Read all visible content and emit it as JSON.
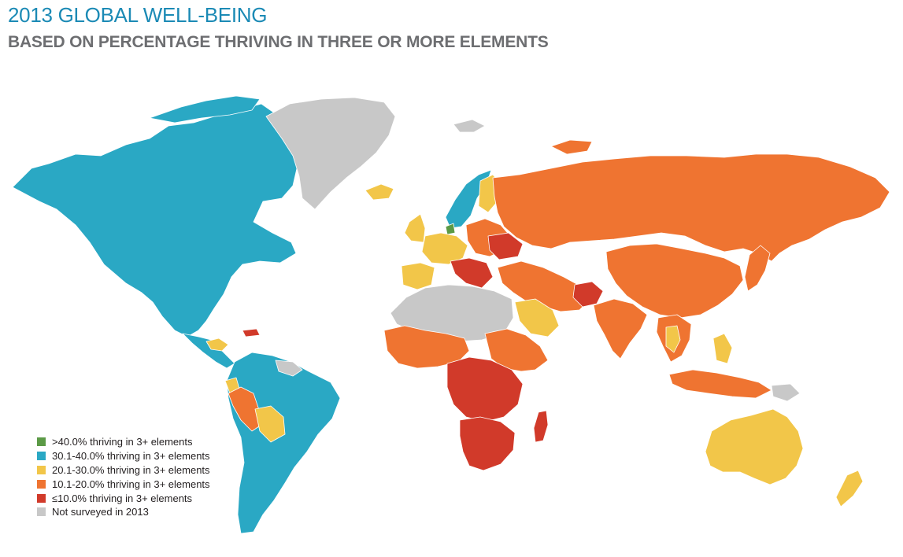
{
  "title": "2013 GLOBAL WELL-BEING",
  "subtitle": "BASED ON PERCENTAGE THRIVING IN THREE OR MORE ELEMENTS",
  "colors": {
    "green": "#5b9a46",
    "blue": "#2aa8c4",
    "yellow": "#f2c649",
    "orange": "#ef7431",
    "red": "#d13a2a",
    "gray": "#c8c8c8",
    "ocean": "#ffffff"
  },
  "legend": [
    {
      "label": ">40.0% thriving in 3+ elements",
      "color": "green"
    },
    {
      "label": "30.1-40.0% thriving in 3+ elements",
      "color": "blue"
    },
    {
      "label": "20.1-30.0% thriving in 3+ elements",
      "color": "yellow"
    },
    {
      "label": "10.1-20.0% thriving in 3+ elements",
      "color": "orange"
    },
    {
      "label": "≤10.0% thriving in 3+ elements",
      "color": "red"
    },
    {
      "label": "Not surveyed in 2013",
      "color": "gray"
    }
  ],
  "regions": [
    {
      "name": "north-america",
      "color": "blue"
    },
    {
      "name": "greenland",
      "color": "gray"
    },
    {
      "name": "iceland",
      "color": "yellow"
    },
    {
      "name": "central-america",
      "color": "blue"
    },
    {
      "name": "south-america",
      "color": "blue"
    },
    {
      "name": "peru",
      "color": "orange"
    },
    {
      "name": "bolivia",
      "color": "yellow"
    },
    {
      "name": "ecuador",
      "color": "yellow"
    },
    {
      "name": "guianas",
      "color": "gray"
    },
    {
      "name": "scandinavia",
      "color": "blue"
    },
    {
      "name": "finland",
      "color": "yellow"
    },
    {
      "name": "denmark",
      "color": "green"
    },
    {
      "name": "western-europe",
      "color": "yellow"
    },
    {
      "name": "uk",
      "color": "yellow"
    },
    {
      "name": "iberia",
      "color": "yellow"
    },
    {
      "name": "eastern-europe",
      "color": "orange"
    },
    {
      "name": "balkans",
      "color": "red"
    },
    {
      "name": "ukraine",
      "color": "red"
    },
    {
      "name": "russia",
      "color": "orange"
    },
    {
      "name": "north-africa-desert",
      "color": "gray"
    },
    {
      "name": "west-africa",
      "color": "orange"
    },
    {
      "name": "central-africa",
      "color": "red"
    },
    {
      "name": "east-africa",
      "color": "orange"
    },
    {
      "name": "southern-africa",
      "color": "red"
    },
    {
      "name": "madagascar",
      "color": "red"
    },
    {
      "name": "middle-east",
      "color": "orange"
    },
    {
      "name": "saudi-arabia",
      "color": "yellow"
    },
    {
      "name": "afghanistan",
      "color": "red"
    },
    {
      "name": "south-asia",
      "color": "orange"
    },
    {
      "name": "china",
      "color": "orange"
    },
    {
      "name": "japan",
      "color": "orange"
    },
    {
      "name": "southeast-asia",
      "color": "orange"
    },
    {
      "name": "thailand",
      "color": "yellow"
    },
    {
      "name": "philippines",
      "color": "yellow"
    },
    {
      "name": "indonesia",
      "color": "orange"
    },
    {
      "name": "papua",
      "color": "gray"
    },
    {
      "name": "australia",
      "color": "yellow"
    },
    {
      "name": "new-zealand",
      "color": "yellow"
    },
    {
      "name": "svalbard",
      "color": "gray"
    },
    {
      "name": "arctic-islands",
      "color": "orange"
    }
  ]
}
